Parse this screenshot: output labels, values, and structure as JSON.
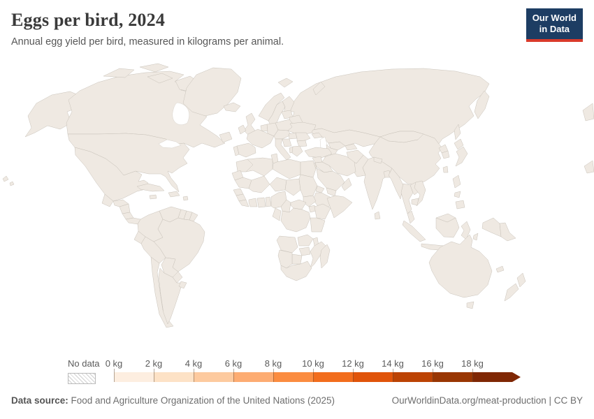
{
  "header": {
    "title": "Eggs per bird, 2024",
    "subtitle": "Annual egg yield per bird, measured in kilograms per animal."
  },
  "logo": {
    "line1": "Our World",
    "line2": "in Data",
    "bg_color": "#1d3d63",
    "underline_color": "#d93a2b"
  },
  "legend": {
    "no_data_label": "No data",
    "tick_labels": [
      "0 kg",
      "2 kg",
      "4 kg",
      "6 kg",
      "8 kg",
      "10 kg",
      "12 kg",
      "14 kg",
      "16 kg",
      "18 kg"
    ],
    "bins": [
      {
        "label": "0-2 kg",
        "color": "#fdeee0"
      },
      {
        "label": "2-4 kg",
        "color": "#fde2c6"
      },
      {
        "label": "4-6 kg",
        "color": "#fdca9f"
      },
      {
        "label": "6-8 kg",
        "color": "#fdac72"
      },
      {
        "label": "8-10 kg",
        "color": "#fb8c40"
      },
      {
        "label": "10-12 kg",
        "color": "#f26d1d"
      },
      {
        "label": "12-14 kg",
        "color": "#e0540a"
      },
      {
        "label": "14-16 kg",
        "color": "#bc4304"
      },
      {
        "label": "16-18 kg",
        "color": "#993603"
      },
      {
        "label": "18+ kg",
        "color": "#7f2704"
      }
    ]
  },
  "footer": {
    "source_label": "Data source:",
    "source_text": " Food and Agriculture Organization of the United Nations (2025)",
    "link_text": "OurWorldinData.org/meat-production | CC BY"
  },
  "chart_data": {
    "type": "heatmap",
    "subtype": "choropleth-world-map",
    "title": "Eggs per bird, 2024",
    "subtitle": "Annual egg yield per bird, measured in kilograms per animal.",
    "unit": "kg",
    "bin_edges": [
      0,
      2,
      4,
      6,
      8,
      10,
      12,
      14,
      16,
      18
    ],
    "legend_position": "bottom",
    "series": [
      {
        "name": "United States",
        "bin": "16-18"
      },
      {
        "name": "Canada",
        "bin": "16-18"
      },
      {
        "name": "Greenland",
        "bin": "no data"
      },
      {
        "name": "Mexico",
        "bin": "14-16"
      },
      {
        "name": "Guatemala",
        "bin": "8-10"
      },
      {
        "name": "Honduras",
        "bin": "10-12"
      },
      {
        "name": "Nicaragua",
        "bin": "10-12"
      },
      {
        "name": "Costa Rica",
        "bin": "14-16"
      },
      {
        "name": "Panama",
        "bin": "14-16"
      },
      {
        "name": "Cuba",
        "bin": "10-12"
      },
      {
        "name": "Colombia",
        "bin": "16-18"
      },
      {
        "name": "Venezuela",
        "bin": "18+"
      },
      {
        "name": "Guyana",
        "bin": "2-4"
      },
      {
        "name": "Suriname",
        "bin": "no data"
      },
      {
        "name": "Ecuador",
        "bin": "14-16"
      },
      {
        "name": "Peru",
        "bin": "18+"
      },
      {
        "name": "Brazil",
        "bin": "12-14"
      },
      {
        "name": "Bolivia",
        "bin": "2-4"
      },
      {
        "name": "Paraguay",
        "bin": "10-12"
      },
      {
        "name": "Chile",
        "bin": "18+"
      },
      {
        "name": "Argentina",
        "bin": "18+"
      },
      {
        "name": "Uruguay",
        "bin": "16-18"
      },
      {
        "name": "Iceland",
        "bin": "16-18"
      },
      {
        "name": "Norway",
        "bin": "16-18"
      },
      {
        "name": "Sweden",
        "bin": "8-10"
      },
      {
        "name": "Finland",
        "bin": "16-18"
      },
      {
        "name": "United Kingdom",
        "bin": "16-18"
      },
      {
        "name": "Ireland",
        "bin": "no data"
      },
      {
        "name": "France",
        "bin": "no data"
      },
      {
        "name": "Germany",
        "bin": "18+"
      },
      {
        "name": "Poland",
        "bin": "10-12"
      },
      {
        "name": "Ukraine",
        "bin": "8-10"
      },
      {
        "name": "Belarus",
        "bin": "8-10"
      },
      {
        "name": "Baltic states",
        "bin": "no data"
      },
      {
        "name": "Spain",
        "bin": "16-18"
      },
      {
        "name": "Portugal",
        "bin": "10-12"
      },
      {
        "name": "Italy",
        "bin": "18+"
      },
      {
        "name": "Greece",
        "bin": "18+"
      },
      {
        "name": "Romania",
        "bin": "10-12"
      },
      {
        "name": "Bulgaria",
        "bin": "10-12"
      },
      {
        "name": "Turkey",
        "bin": "14-16"
      },
      {
        "name": "Russia",
        "bin": "16-18"
      },
      {
        "name": "Kazakhstan",
        "bin": "10-12"
      },
      {
        "name": "Mongolia",
        "bin": "4-6"
      },
      {
        "name": "China",
        "bin": "10-12"
      },
      {
        "name": "India",
        "bin": "12-14"
      },
      {
        "name": "Pakistan",
        "bin": "8-10"
      },
      {
        "name": "Afghanistan",
        "bin": "0-2"
      },
      {
        "name": "Iran",
        "bin": "16-18"
      },
      {
        "name": "Iraq",
        "bin": "14-16"
      },
      {
        "name": "Saudi Arabia",
        "bin": "10-12"
      },
      {
        "name": "Yemen",
        "bin": "8-10"
      },
      {
        "name": "Oman",
        "bin": "18+"
      },
      {
        "name": "Japan",
        "bin": "18+"
      },
      {
        "name": "South Korea",
        "bin": "18+"
      },
      {
        "name": "North Korea",
        "bin": "8-10"
      },
      {
        "name": "Taiwan",
        "bin": "10-12"
      },
      {
        "name": "Myanmar",
        "bin": "2-4"
      },
      {
        "name": "Thailand",
        "bin": "8-10"
      },
      {
        "name": "Vietnam",
        "bin": "8-10"
      },
      {
        "name": "Cambodia",
        "bin": "2-4"
      },
      {
        "name": "Malaysia",
        "bin": "8-10"
      },
      {
        "name": "Indonesia",
        "bin": "16-18"
      },
      {
        "name": "Philippines",
        "bin": "2-4"
      },
      {
        "name": "Papua New Guinea",
        "bin": "0-2"
      },
      {
        "name": "Sri Lanka",
        "bin": "18+"
      },
      {
        "name": "Nepal",
        "bin": "10-12"
      },
      {
        "name": "Bangladesh",
        "bin": "4-6"
      },
      {
        "name": "Morocco",
        "bin": "14-16"
      },
      {
        "name": "Algeria",
        "bin": "8-10"
      },
      {
        "name": "Tunisia",
        "bin": "10-12"
      },
      {
        "name": "Libya",
        "bin": "4-6"
      },
      {
        "name": "Egypt",
        "bin": "14-16"
      },
      {
        "name": "Sudan",
        "bin": "6-8"
      },
      {
        "name": "South Sudan",
        "bin": "no data"
      },
      {
        "name": "Mali",
        "bin": "0-2"
      },
      {
        "name": "Niger",
        "bin": "0-2"
      },
      {
        "name": "Chad",
        "bin": "0-2"
      },
      {
        "name": "Mauritania",
        "bin": "2-4"
      },
      {
        "name": "Senegal",
        "bin": "2-4"
      },
      {
        "name": "Guinea",
        "bin": "0-2"
      },
      {
        "name": "Cote d'Ivoire",
        "bin": "6-8"
      },
      {
        "name": "Ghana",
        "bin": "10-12"
      },
      {
        "name": "Nigeria",
        "bin": "4-6"
      },
      {
        "name": "Cameroon",
        "bin": "6-8"
      },
      {
        "name": "Ethiopia",
        "bin": "0-2"
      },
      {
        "name": "Somalia",
        "bin": "4-6"
      },
      {
        "name": "Kenya",
        "bin": "6-8"
      },
      {
        "name": "DR Congo",
        "bin": "0-2"
      },
      {
        "name": "Tanzania",
        "bin": "6-8"
      },
      {
        "name": "Angola",
        "bin": "2-4"
      },
      {
        "name": "Zambia",
        "bin": "6-8"
      },
      {
        "name": "Mozambique",
        "bin": "2-4"
      },
      {
        "name": "Zimbabwe",
        "bin": "6-8"
      },
      {
        "name": "Namibia",
        "bin": "0-2"
      },
      {
        "name": "Botswana",
        "bin": "2-4"
      },
      {
        "name": "South Africa",
        "bin": "10-12"
      },
      {
        "name": "Madagascar",
        "bin": "2-4"
      },
      {
        "name": "Australia",
        "bin": "16-18"
      },
      {
        "name": "New Zealand",
        "bin": "16-18"
      }
    ]
  },
  "map": {
    "country_fills": {
      "alaska": "#993603",
      "canada": "#993603",
      "usa": "#993603",
      "hawaii1": "#993603",
      "hawaii2": "#993603",
      "newfoundland": "#993603",
      "arctic1": "#993603",
      "arctic2": "#993603",
      "arctic3": "#993603",
      "baffin": "#993603",
      "greenland": "nodata",
      "mexico": "#bc4304",
      "guatemala": "#fb8c40",
      "honduras": "#f26d1d",
      "nicaragua": "#f26d1d",
      "costarica": "#bc4304",
      "panama": "#bc4304",
      "cuba": "#f26d1d",
      "jamaica": "#fb8c40",
      "hispaniola": "#f26d1d",
      "puertorico": "#f26d1d",
      "colombia": "#993603",
      "venezuela": "#7f2704",
      "guyana": "#fde2c6",
      "suriname": "nodata",
      "frenchguiana": "nodata",
      "ecuador": "#bc4304",
      "peru": "#7f2704",
      "brazil": "#e0540a",
      "bolivia": "#fde2c6",
      "paraguay": "#f26d1d",
      "chile": "#7f2704",
      "argentina": "#7f2704",
      "uruguay": "#993603",
      "iceland": "#993603",
      "norway": "#993603",
      "sweden": "#fb8c40",
      "finland": "#993603",
      "uk": "#993603",
      "ireland": "nodata",
      "baltics": "nodata",
      "belarus": "#fb8c40",
      "poland": "#f26d1d",
      "germany": "#7f2704",
      "benelux": "nodata",
      "france": "nodata",
      "alpine": "nodata",
      "hungary": "#f26d1d",
      "romania": "#f26d1d",
      "bulgaria": "#f26d1d",
      "balkanswest": "nodata",
      "albania": "#fde2c6",
      "greece": "#7f2704",
      "ukraine": "#fb8c40",
      "spain": "#993603",
      "portugal": "#f26d1d",
      "italy": "#7f2704",
      "sicily": "#7f2704",
      "russia": "#993603",
      "svalbard": "#993603",
      "novayazemlya": "#993603",
      "kamchatka": "#993603",
      "sakhalin": "#993603",
      "chukotkawrap": "#993603",
      "chukotkawrap2": "#993603",
      "kazakhstan": "#f26d1d",
      "caucasus": "#e0540a",
      "uzbekistan": "#e0540a",
      "turkmenistan": "#f26d1d",
      "kyrgyztajik": "#f26d1d",
      "mongolia": "#fdca9f",
      "china": "#f26d1d",
      "afghanistan": "#fdeee0",
      "pakistan": "#fb8c40",
      "india": "#e0540a",
      "nepal": "#f26d1d",
      "bangladesh": "#fdca9f",
      "srilanka": "#7f2704",
      "myanmar": "#fde2c6",
      "thailand": "#fb8c40",
      "laos": "#fb8c40",
      "vietnam": "#fb8c40",
      "cambodia": "#fde2c6",
      "malaysiapeninsula": "#fb8c40",
      "malaysiaborneo": "#fb8c40",
      "sumatra": "#993603",
      "borneo": "#993603",
      "java": "#993603",
      "sulawesi": "#993603",
      "lessersunda": "#993603",
      "maluku": "#993603",
      "westpapua": "#993603",
      "papuanewguinea": "#fdeee0",
      "philluzon": "#fde2c6",
      "philvisayas": "#fde2c6",
      "mindanao": "#fde2c6",
      "taiwan": "#f26d1d",
      "northkorea": "#fb8c40",
      "southkorea": "#7f2704",
      "japanhokkaido": "#7f2704",
      "japanhonshu": "#7f2704",
      "turkey": "#bc4304",
      "syria": "#e0540a",
      "iraq": "#bc4304",
      "iran": "#993603",
      "jordanisrael": "#f26d1d",
      "saudiarabia": "#f26d1d",
      "yemen": "#fb8c40",
      "oman": "#7f2704",
      "morocco": "#bc4304",
      "westernsahara": "nodata",
      "algeria": "#fb8c40",
      "tunisia": "#f26d1d",
      "libya": "#fdca9f",
      "egypt": "#bc4304",
      "mauritania": "#fde2c6",
      "mali": "#fdeee0",
      "niger": "#fdeee0",
      "chad": "#fdeee0",
      "sudan": "#fdac72",
      "eritrea": "#fdca9f",
      "ethiopia": "#fdeee0",
      "somalia": "#fdca9f",
      "southsudan": "nodata",
      "senegal": "#fde2c6",
      "guinea": "#fdeee0",
      "sierraliberia": "#fdeee0",
      "ivorycoast": "#fdac72",
      "ghana": "#f26d1d",
      "togobenin": "#fdac72",
      "nigeria": "#fdca9f",
      "cameroon": "#fdac72",
      "car": "#fdeee0",
      "uganda": "#fdac72",
      "kenya": "#fdac72",
      "drc": "#fdeee0",
      "congogabon": "#fde2c6",
      "tanzania": "#fdac72",
      "angola": "#fde2c6",
      "zambia": "#fdac72",
      "malawi": "#fdac72",
      "mozambique": "#fde2c6",
      "zimbabwe": "#fdac72",
      "botswana": "#fde2c6",
      "namibia": "#fdeee0",
      "southafrica": "#f26d1d",
      "madagascar": "#fde2c6",
      "australia": "#993603",
      "tasmania": "#993603",
      "nznorth": "#993603",
      "nzsouth": "#993603",
      "newcaledonia": "#993603"
    }
  }
}
